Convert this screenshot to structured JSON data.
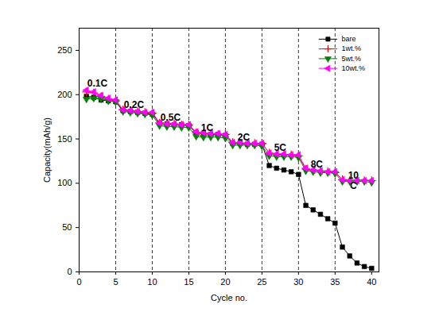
{
  "chart_data": {
    "type": "line",
    "x_label": "Cycle no.",
    "y_label": "Capacity(mAh/g)",
    "x": [
      1,
      2,
      3,
      4,
      5,
      6,
      7,
      8,
      9,
      10,
      11,
      12,
      13,
      14,
      15,
      16,
      17,
      18,
      19,
      20,
      21,
      22,
      23,
      24,
      25,
      26,
      27,
      28,
      29,
      30,
      31,
      32,
      33,
      34,
      35,
      36,
      37,
      38,
      39,
      40
    ],
    "xlim": [
      0,
      41
    ],
    "xticks": [
      0,
      5,
      10,
      15,
      20,
      25,
      30,
      35,
      40
    ],
    "ylim": [
      0,
      275
    ],
    "yticks": [
      0,
      50,
      100,
      150,
      200,
      250
    ],
    "grid": false,
    "legend": "upper right",
    "series": [
      {
        "name": "bare",
        "color": "#000000",
        "marker": "square",
        "values": [
          198,
          197,
          194,
          193,
          192,
          182,
          181,
          180,
          179,
          178,
          168,
          167,
          166,
          166,
          165,
          157,
          156,
          155,
          155,
          154,
          145,
          145,
          144,
          144,
          144,
          120,
          117,
          115,
          113,
          110,
          75,
          70,
          65,
          60,
          55,
          28,
          18,
          10,
          6,
          4
        ]
      },
      {
        "name": "1wt.%",
        "color": "#ff0000",
        "marker": "plus",
        "values": [
          203,
          202,
          198,
          195,
          193,
          183,
          182,
          181,
          180,
          179,
          168,
          167,
          167,
          166,
          166,
          157,
          156,
          156,
          155,
          155,
          146,
          145,
          145,
          145,
          145,
          134,
          133,
          132,
          132,
          131,
          116,
          115,
          114,
          113,
          112,
          104,
          103,
          103,
          103,
          103
        ]
      },
      {
        "name": "5wt.%",
        "color": "#008000",
        "marker": "triangle-down",
        "values": [
          195,
          196,
          195,
          193,
          192,
          181,
          180,
          179,
          178,
          177,
          165,
          164,
          164,
          163,
          163,
          153,
          152,
          152,
          152,
          151,
          143,
          143,
          143,
          143,
          142,
          131,
          130,
          130,
          130,
          129,
          114,
          113,
          112,
          112,
          111,
          102,
          102,
          102,
          102,
          101
        ]
      },
      {
        "name": "10wt.%",
        "color": "#ff00ff",
        "marker": "triangle-left",
        "values": [
          205,
          203,
          199,
          196,
          194,
          183,
          182,
          181,
          180,
          180,
          168,
          167,
          167,
          166,
          166,
          158,
          157,
          156,
          156,
          155,
          146,
          146,
          145,
          145,
          145,
          134,
          133,
          133,
          132,
          132,
          117,
          115,
          114,
          113,
          113,
          104,
          103,
          103,
          103,
          103
        ]
      }
    ],
    "vlines": [
      5,
      10,
      15,
      20,
      25,
      30,
      35
    ],
    "annotations": [
      {
        "text": "0.1C",
        "x": 2.5,
        "y": 213
      },
      {
        "text": "0.2C",
        "x": 7.5,
        "y": 189
      },
      {
        "text": "0.5C",
        "x": 12.5,
        "y": 174
      },
      {
        "text": "1C",
        "x": 17.5,
        "y": 163
      },
      {
        "text": "2C",
        "x": 22.5,
        "y": 152
      },
      {
        "text": "5C",
        "x": 27.5,
        "y": 140
      },
      {
        "text": "8C",
        "x": 32.5,
        "y": 122
      },
      {
        "text": "10\nC",
        "x": 37.5,
        "y": 103
      }
    ]
  }
}
